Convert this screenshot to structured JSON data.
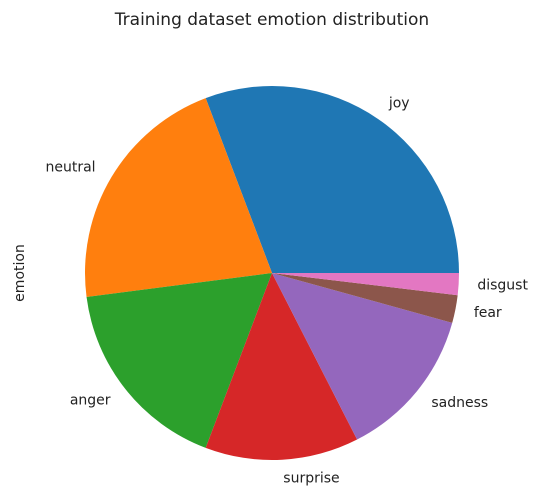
{
  "chart_data": {
    "type": "pie",
    "title": "Training dataset emotion distribution",
    "ylabel": "emotion",
    "categories": [
      "joy",
      "neutral",
      "anger",
      "surprise",
      "sadness",
      "fear",
      "disgust"
    ],
    "values": [
      30.8,
      21.3,
      17.2,
      13.3,
      13.2,
      2.4,
      1.9
    ],
    "colors": [
      "#1f77b4",
      "#ff7f0e",
      "#2ca02c",
      "#d62728",
      "#9467bd",
      "#8c564b",
      "#e377c2"
    ]
  }
}
